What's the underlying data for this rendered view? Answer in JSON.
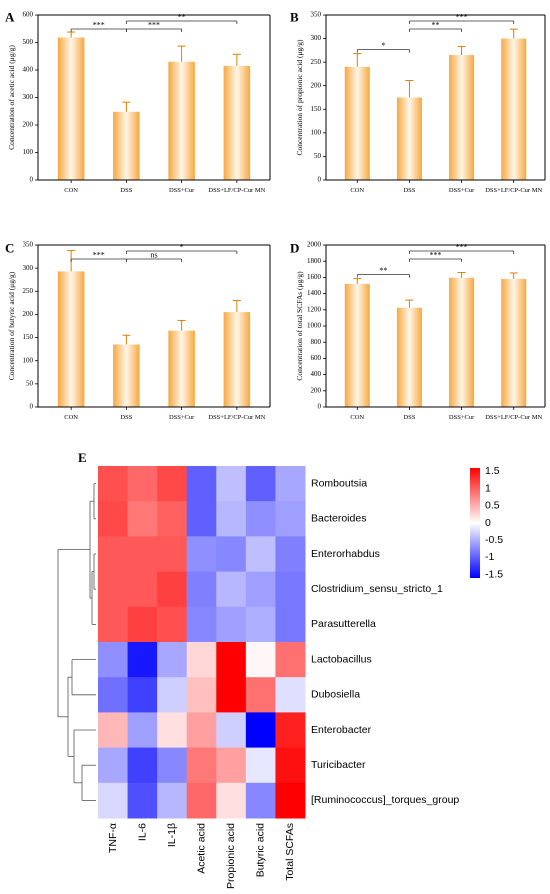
{
  "bar_charts": [
    {
      "panel": "A",
      "type": "bar",
      "ylabel": "Concentration of acetic acid (μg/g)",
      "ylim": [
        0,
        600
      ],
      "yticks": [
        0,
        100,
        200,
        300,
        400,
        500,
        600
      ],
      "categories": [
        "CON",
        "DSS",
        "DSS+Cur",
        "DSS+LF/CP-Cur MN"
      ],
      "values": [
        518,
        248,
        430,
        415
      ],
      "errors": [
        20,
        35,
        57,
        42
      ],
      "significance": [
        {
          "from": 0,
          "to": 1,
          "label": "***"
        },
        {
          "from": 1,
          "to": 2,
          "label": "***"
        },
        {
          "from": 1,
          "to": 3,
          "label": "**"
        }
      ]
    },
    {
      "panel": "B",
      "type": "bar",
      "ylabel": "Concentration of propionic acid (μg/g)",
      "ylim": [
        0,
        350
      ],
      "yticks": [
        0,
        50,
        100,
        150,
        200,
        250,
        300,
        350
      ],
      "categories": [
        "CON",
        "DSS",
        "DSS+Cur",
        "DSS+LF/CP-Cur MN"
      ],
      "values": [
        240,
        175,
        265,
        300
      ],
      "errors": [
        28,
        36,
        18,
        20
      ],
      "significance": [
        {
          "from": 0,
          "to": 1,
          "label": "*"
        },
        {
          "from": 1,
          "to": 2,
          "label": "**"
        },
        {
          "from": 1,
          "to": 3,
          "label": "***"
        }
      ]
    },
    {
      "panel": "C",
      "type": "bar",
      "ylabel": "Concentration of butyric acid (μg/g)",
      "ylim": [
        0,
        350
      ],
      "yticks": [
        0,
        50,
        100,
        150,
        200,
        250,
        300,
        350
      ],
      "categories": [
        "CON",
        "DSS",
        "DSS+Cur",
        "DSS+LF/CP-Cur MN"
      ],
      "values": [
        293,
        135,
        165,
        205
      ],
      "errors": [
        45,
        20,
        22,
        25
      ],
      "significance": [
        {
          "from": 0,
          "to": 1,
          "label": "***"
        },
        {
          "from": 1,
          "to": 2,
          "label": "ns"
        },
        {
          "from": 1,
          "to": 3,
          "label": "*"
        }
      ]
    },
    {
      "panel": "D",
      "type": "bar",
      "ylabel": "Concentration of total SCFAs (μg/g)",
      "ylim": [
        0,
        2000
      ],
      "yticks": [
        0,
        200,
        400,
        600,
        800,
        1000,
        1200,
        1400,
        1600,
        1800,
        2000
      ],
      "categories": [
        "CON",
        "DSS",
        "DSS+Cur",
        "DSS+LF/CP-Cur MN"
      ],
      "values": [
        1520,
        1225,
        1595,
        1580
      ],
      "errors": [
        65,
        95,
        65,
        75
      ],
      "significance": [
        {
          "from": 0,
          "to": 1,
          "label": "**"
        },
        {
          "from": 1,
          "to": 2,
          "label": "***"
        },
        {
          "from": 1,
          "to": 3,
          "label": "***"
        }
      ]
    }
  ],
  "chart_data": {
    "panel": "E",
    "type": "heatmap",
    "columns": [
      "TNF-α",
      "IL-6",
      "IL-1β",
      "Acetic acid",
      "Propionic acid",
      "Butyric acid",
      "Total SCFAs"
    ],
    "rows": [
      "Romboutsia",
      "Bacteroides",
      "Enterorhabdus",
      "Clostridium_sensu_stricto_1",
      "Parasutterella",
      "Lactobacillus",
      "Dubosiella",
      "Enterobacter",
      "Turicibacter",
      "[Ruminococcus]_torques_group"
    ],
    "values": [
      [
        1.1,
        0.95,
        1.15,
        -1.0,
        -0.4,
        -1.0,
        -0.55
      ],
      [
        1.15,
        0.85,
        1.0,
        -1.0,
        -0.45,
        -0.7,
        -0.6
      ],
      [
        1.05,
        1.05,
        1.05,
        -0.7,
        -0.75,
        -0.4,
        -0.8
      ],
      [
        1.05,
        1.05,
        1.2,
        -0.8,
        -0.45,
        -0.6,
        -0.85
      ],
      [
        1.05,
        1.2,
        1.1,
        -0.75,
        -0.6,
        -0.5,
        -0.85
      ],
      [
        -0.7,
        -1.45,
        -0.55,
        0.25,
        1.6,
        0.05,
        0.9
      ],
      [
        -0.9,
        -1.2,
        -0.3,
        0.4,
        1.6,
        0.9,
        -0.2
      ],
      [
        0.45,
        -0.6,
        0.2,
        0.6,
        -0.3,
        -1.6,
        1.4
      ],
      [
        -0.55,
        -1.2,
        -0.75,
        0.85,
        0.6,
        -0.15,
        1.5
      ],
      [
        -0.25,
        -1.1,
        -0.45,
        0.95,
        0.2,
        -0.75,
        1.65
      ]
    ],
    "colorbar": {
      "min": -1.6,
      "max": 1.6,
      "ticks": [
        "1.5",
        "1",
        "0.5",
        "0",
        "-0.5",
        "-1",
        "-1.5"
      ]
    },
    "colors": {
      "low": "#0000ff",
      "mid": "#ffffff",
      "high": "#ff0000"
    }
  },
  "bar_colors": {
    "edge": "#f5a623",
    "center": "#fff6e6",
    "error": "#e07f00"
  }
}
